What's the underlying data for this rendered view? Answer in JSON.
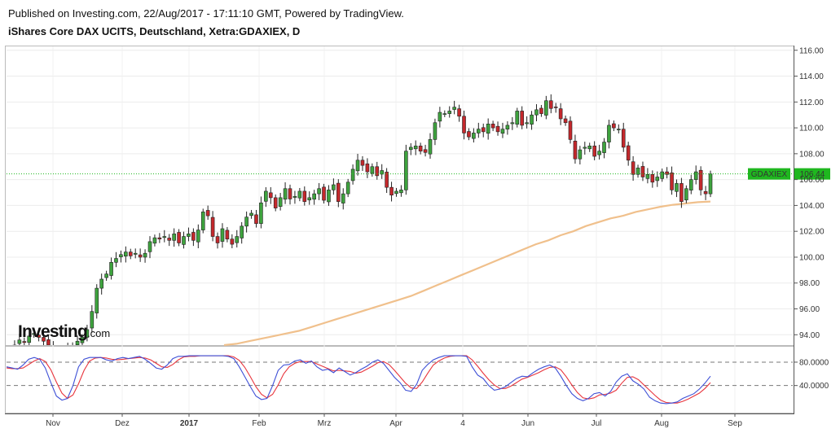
{
  "header": {
    "line1": "Published on Investing.com, 22/Aug/2017 - 17:11:10 GMT, Powered by TradingView.",
    "line2": "iShares Core DAX UCITS, Deutschland, Xetra:GDAXIEX, D"
  },
  "logo": {
    "main": "Investing",
    "suffix": ".com"
  },
  "colors": {
    "up": "#3ea33e",
    "down": "#c4282c",
    "ma": "#f0c08c",
    "stoch_k": "#3d4fd6",
    "stoch_d": "#e8343c",
    "last_price": "#1fb71f"
  },
  "chart_data": {
    "type": "candlestick",
    "symbol": "GDAXIEX",
    "last_price_label": "106.44",
    "last_price": 106.44,
    "price_axis": {
      "ticks": [
        "116.00",
        "114.00",
        "112.00",
        "110.00",
        "108.00",
        "106.00",
        "104.00",
        "102.00",
        "100.00",
        "98.00",
        "96.00",
        "94.00"
      ],
      "ylim": [
        93.2,
        116.3
      ]
    },
    "x_labels": [
      "Nov",
      "Dez",
      "2017",
      "Feb",
      "Mrz",
      "Apr",
      "4",
      "Jun",
      "Jul",
      "Aug",
      "Sep"
    ],
    "candles_close": [
      92.8,
      93.2,
      93.6,
      93.4,
      93.9,
      94.1,
      93.8,
      93.5,
      93.2,
      92.9,
      92.7,
      92.6,
      92.9,
      93.1,
      93.5,
      93.8,
      94.4,
      95.8,
      97.6,
      98.3,
      98.7,
      99.6,
      99.9,
      100.2,
      100.4,
      100.1,
      100.3,
      100.0,
      100.3,
      101.2,
      101.5,
      101.4,
      101.6,
      101.3,
      101.8,
      101.1,
      101.6,
      101.8,
      101.3,
      102.1,
      103.5,
      103.2,
      101.6,
      101.1,
      102.2,
      101.4,
      101.0,
      101.6,
      102.4,
      103.1,
      103.4,
      102.6,
      104.2,
      105.1,
      104.6,
      103.8,
      104.6,
      105.3,
      104.5,
      104.7,
      105.1,
      104.3,
      104.6,
      104.9,
      105.3,
      104.4,
      105.2,
      105.6,
      104.3,
      104.9,
      105.8,
      106.8,
      107.5,
      107.1,
      106.6,
      107.0,
      106.3,
      106.7,
      105.4,
      104.8,
      105.1,
      105.2,
      108.2,
      108.5,
      108.6,
      108.2,
      108.1,
      109.1,
      110.4,
      111.2,
      111.1,
      111.3,
      111.6,
      110.9,
      109.6,
      109.3,
      109.6,
      109.9,
      109.7,
      110.3,
      110.0,
      109.7,
      109.9,
      110.2,
      110.4,
      111.3,
      110.2,
      110.4,
      111.0,
      111.4,
      111.1,
      112.1,
      111.5,
      111.6,
      110.7,
      110.4,
      109.1,
      107.6,
      108.3,
      108.5,
      108.6,
      107.8,
      108.2,
      108.9,
      110.2,
      110.0,
      109.9,
      108.5,
      107.5,
      106.4,
      106.9,
      106.2,
      106.4,
      105.8,
      106.2,
      106.6,
      106.4,
      105.2,
      105.7,
      104.3,
      105.3,
      106.0,
      106.6,
      105.2,
      104.9,
      106.44
    ],
    "ma_200": [
      93.2,
      93.3,
      93.5,
      93.7,
      93.9,
      94.1,
      94.3,
      94.6,
      94.9,
      95.2,
      95.5,
      95.8,
      96.1,
      96.4,
      96.7,
      97.0,
      97.4,
      97.8,
      98.2,
      98.6,
      99.0,
      99.4,
      99.8,
      100.2,
      100.6,
      101.0,
      101.3,
      101.7,
      102.0,
      102.4,
      102.7,
      103.0,
      103.2,
      103.5,
      103.7,
      103.9,
      104.05,
      104.15,
      104.25,
      104.3
    ],
    "ma_label": "200-day moving average (unlabeled)",
    "stochastic": {
      "axis_ticks": [
        "80.0000",
        "40.0000"
      ],
      "ylim": [
        -5,
        105
      ],
      "k": [
        72,
        70,
        68,
        75,
        85,
        88,
        85,
        70,
        45,
        22,
        15,
        18,
        40,
        72,
        85,
        88,
        88,
        88,
        84,
        82,
        86,
        88,
        86,
        88,
        90,
        85,
        78,
        70,
        68,
        75,
        86,
        90,
        90,
        91,
        91,
        91,
        91,
        91,
        91,
        91,
        90,
        86,
        72,
        55,
        38,
        22,
        16,
        18,
        40,
        66,
        75,
        76,
        82,
        84,
        78,
        82,
        72,
        66,
        68,
        62,
        70,
        64,
        58,
        62,
        68,
        73,
        80,
        84,
        78,
        66,
        54,
        45,
        32,
        30,
        42,
        66,
        76,
        84,
        88,
        91,
        91,
        91,
        91,
        90,
        72,
        58,
        52,
        40,
        32,
        34,
        38,
        45,
        52,
        56,
        55,
        62,
        68,
        72,
        75,
        70,
        56,
        40,
        26,
        18,
        14,
        18,
        26,
        28,
        22,
        30,
        46,
        56,
        60,
        48,
        42,
        34,
        20,
        14,
        10,
        9,
        10,
        12,
        18,
        22,
        26,
        34,
        44,
        56
      ],
      "d": [
        70,
        69,
        69,
        70,
        76,
        82,
        86,
        81,
        67,
        46,
        27,
        18,
        24,
        43,
        66,
        82,
        87,
        88,
        87,
        85,
        84,
        85,
        86,
        87,
        88,
        87,
        84,
        78,
        72,
        71,
        76,
        84,
        89,
        90,
        90,
        91,
        91,
        91,
        91,
        91,
        91,
        89,
        83,
        71,
        55,
        38,
        25,
        19,
        25,
        41,
        60,
        72,
        78,
        81,
        81,
        81,
        77,
        73,
        69,
        65,
        66,
        65,
        64,
        61,
        63,
        68,
        73,
        79,
        81,
        76,
        66,
        55,
        44,
        36,
        35,
        46,
        61,
        75,
        82,
        87,
        90,
        91,
        91,
        91,
        84,
        73,
        61,
        50,
        41,
        35,
        35,
        39,
        45,
        51,
        54,
        58,
        62,
        67,
        71,
        72,
        67,
        55,
        41,
        28,
        19,
        17,
        19,
        24,
        25,
        27,
        32,
        44,
        54,
        55,
        50,
        41,
        32,
        23,
        15,
        11,
        10,
        10,
        13,
        17,
        22,
        27,
        35,
        45
      ]
    }
  }
}
